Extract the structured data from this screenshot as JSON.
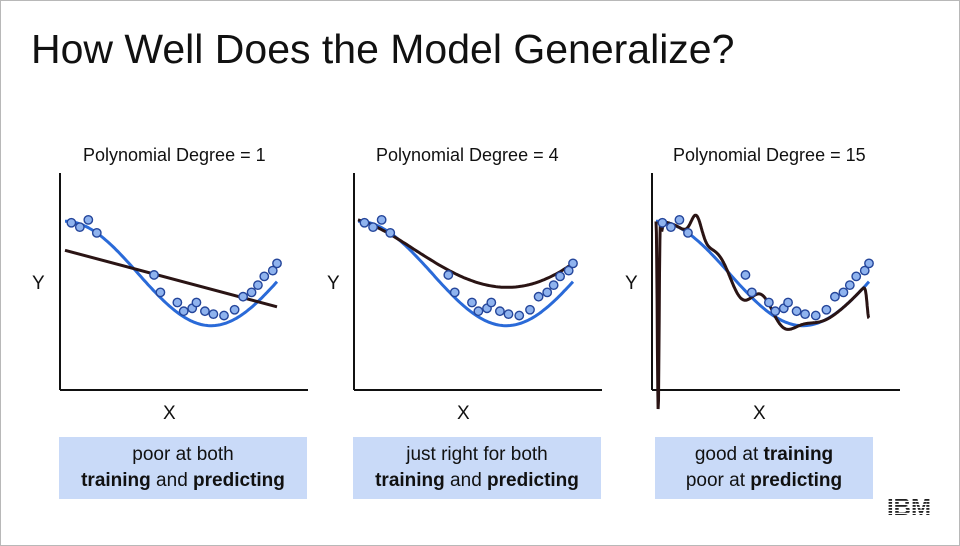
{
  "slide": {
    "title": "How Well Does the Model Generalize?",
    "logo_text": "IBM"
  },
  "colors": {
    "true_curve": "#2a6ad8",
    "model_curve": "#2a1414",
    "points_fill": "#8fb3ee",
    "points_stroke": "#24459a",
    "caption_bg": "#c9daf8"
  },
  "chart_data": [
    {
      "type": "scatter",
      "title": "Polynomial Degree = 1",
      "xlabel": "X",
      "ylabel": "Y",
      "xlim": [
        0,
        1
      ],
      "ylim": [
        0,
        1
      ],
      "points": [
        [
          0.03,
          0.85
        ],
        [
          0.07,
          0.82
        ],
        [
          0.11,
          0.87
        ],
        [
          0.15,
          0.78
        ],
        [
          0.42,
          0.49
        ],
        [
          0.45,
          0.37
        ],
        [
          0.53,
          0.3
        ],
        [
          0.56,
          0.24
        ],
        [
          0.6,
          0.26
        ],
        [
          0.62,
          0.3
        ],
        [
          0.66,
          0.24
        ],
        [
          0.7,
          0.22
        ],
        [
          0.75,
          0.21
        ],
        [
          0.8,
          0.25
        ],
        [
          0.84,
          0.34
        ],
        [
          0.88,
          0.37
        ],
        [
          0.91,
          0.42
        ],
        [
          0.94,
          0.48
        ],
        [
          0.98,
          0.52
        ],
        [
          1.0,
          0.57
        ]
      ],
      "true_curve": "cos",
      "fit_line": [
        [
          0.0,
          0.66
        ],
        [
          1.0,
          0.27
        ]
      ],
      "caption": {
        "line1": [
          "poor at both"
        ],
        "line2": [
          {
            "b": "training"
          },
          " and ",
          {
            "b": "predicting"
          }
        ]
      }
    },
    {
      "type": "scatter",
      "title": "Polynomial Degree = 4",
      "xlabel": "X",
      "ylabel": "Y",
      "xlim": [
        0,
        1
      ],
      "ylim": [
        0,
        1
      ],
      "points": [
        [
          0.03,
          0.85
        ],
        [
          0.07,
          0.82
        ],
        [
          0.11,
          0.87
        ],
        [
          0.15,
          0.78
        ],
        [
          0.42,
          0.49
        ],
        [
          0.45,
          0.37
        ],
        [
          0.53,
          0.3
        ],
        [
          0.56,
          0.24
        ],
        [
          0.6,
          0.26
        ],
        [
          0.62,
          0.3
        ],
        [
          0.66,
          0.24
        ],
        [
          0.7,
          0.22
        ],
        [
          0.75,
          0.21
        ],
        [
          0.8,
          0.25
        ],
        [
          0.84,
          0.34
        ],
        [
          0.88,
          0.37
        ],
        [
          0.91,
          0.42
        ],
        [
          0.94,
          0.48
        ],
        [
          0.98,
          0.52
        ],
        [
          1.0,
          0.57
        ]
      ],
      "true_curve": "cos",
      "fit_curve": "degree4",
      "caption": {
        "line1": [
          "just right for both"
        ],
        "line2": [
          {
            "b": "training"
          },
          " and ",
          {
            "b": "predicting"
          }
        ]
      }
    },
    {
      "type": "scatter",
      "title": "Polynomial Degree = 15",
      "xlabel": "X",
      "ylabel": "Y",
      "xlim": [
        0,
        1
      ],
      "ylim": [
        0,
        1
      ],
      "points": [
        [
          0.03,
          0.85
        ],
        [
          0.07,
          0.82
        ],
        [
          0.11,
          0.87
        ],
        [
          0.15,
          0.78
        ],
        [
          0.42,
          0.49
        ],
        [
          0.45,
          0.37
        ],
        [
          0.53,
          0.3
        ],
        [
          0.56,
          0.24
        ],
        [
          0.6,
          0.26
        ],
        [
          0.62,
          0.3
        ],
        [
          0.66,
          0.24
        ],
        [
          0.7,
          0.22
        ],
        [
          0.75,
          0.21
        ],
        [
          0.8,
          0.25
        ],
        [
          0.84,
          0.34
        ],
        [
          0.88,
          0.37
        ],
        [
          0.91,
          0.42
        ],
        [
          0.94,
          0.48
        ],
        [
          0.98,
          0.52
        ],
        [
          1.0,
          0.57
        ]
      ],
      "true_curve": "cos",
      "fit_curve": "degree15",
      "caption": {
        "line1": [
          "good at ",
          {
            "b": "training"
          }
        ],
        "line2": [
          "poor at ",
          {
            "b": "predicting"
          }
        ]
      }
    }
  ]
}
